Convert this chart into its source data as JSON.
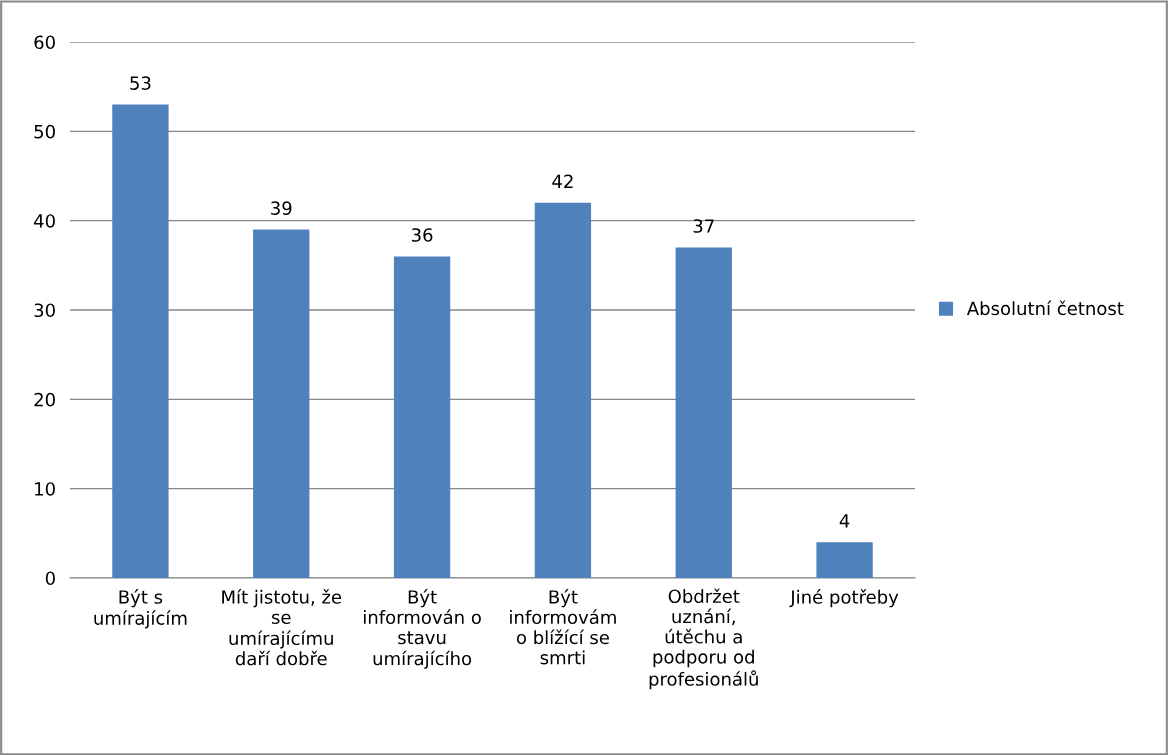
{
  "chart_data": {
    "type": "bar",
    "categories": [
      "Být s\numírajícím",
      "Mít jistotu, že\nse\numírajícímu\ndaří dobře",
      "Být\ninformován o\nstavu\numírajícího",
      "Být\ninformovám\no blížící se\nsmrti",
      "Obdržet\nuznání,\nútěchu a\npodporu od\nprofesionálů",
      "Jiné potřeby"
    ],
    "series": [
      {
        "name": "Absolutní četnost",
        "color": "#4f81bd",
        "values": [
          53,
          39,
          36,
          42,
          37,
          4
        ]
      }
    ],
    "ylim": [
      0,
      60
    ],
    "yticks": [
      0,
      10,
      20,
      30,
      40,
      50,
      60
    ],
    "grid": "y",
    "legend": "right",
    "data_labels": true
  }
}
